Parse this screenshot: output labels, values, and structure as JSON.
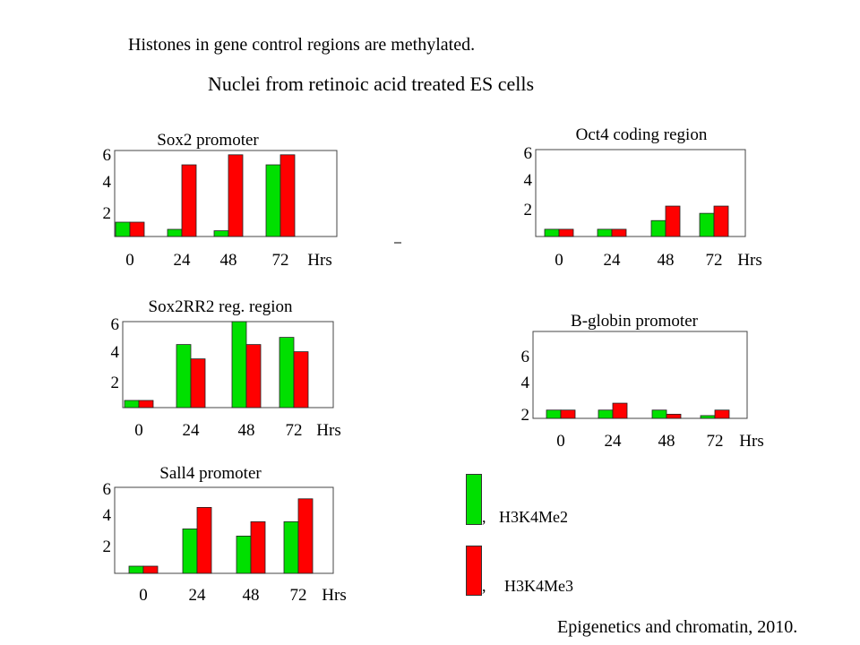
{
  "header": {
    "title": "Histones in gene control regions are methylated.",
    "subtitle": "Nuclei from retinoic acid treated ES cells"
  },
  "legend": {
    "items": [
      {
        "prefix": ",",
        "label": "H3K4Me2",
        "color": "#00e000"
      },
      {
        "prefix": ",",
        "label": "H3K4Me3",
        "color": "#ff0000"
      }
    ]
  },
  "citation": "Epigenetics and chromatin, 2010.",
  "chart_data": [
    {
      "type": "bar",
      "title": "Sox2 promoter",
      "categories": [
        "0",
        "24",
        "48",
        "72"
      ],
      "x_unit_label": "Hrs",
      "yticks": [
        "2",
        "4",
        "6"
      ],
      "ylim": [
        0,
        6
      ],
      "series": [
        {
          "name": "H3K4Me2",
          "values": [
            1.0,
            0.5,
            0.4,
            5.0
          ]
        },
        {
          "name": "H3K4Me3",
          "values": [
            1.0,
            5.0,
            5.7,
            5.7
          ]
        }
      ]
    },
    {
      "type": "bar",
      "title": "Oct4 coding region",
      "categories": [
        "0",
        "24",
        "48",
        "72"
      ],
      "x_unit_label": "Hrs",
      "yticks": [
        "2",
        "4",
        "6"
      ],
      "ylim": [
        0,
        6
      ],
      "series": [
        {
          "name": "H3K4Me2",
          "values": [
            0.5,
            0.5,
            1.1,
            1.6
          ]
        },
        {
          "name": "H3K4Me3",
          "values": [
            0.5,
            0.5,
            2.1,
            2.1
          ]
        }
      ]
    },
    {
      "type": "bar",
      "title": "Sox2RR2 reg. region",
      "categories": [
        "0",
        "24",
        "48",
        "72"
      ],
      "x_unit_label": "Hrs",
      "yticks": [
        "2",
        "4",
        "6"
      ],
      "ylim": [
        0,
        6
      ],
      "series": [
        {
          "name": "H3K4Me2",
          "values": [
            0.5,
            4.4,
            6.0,
            4.9
          ]
        },
        {
          "name": "H3K4Me3",
          "values": [
            0.5,
            3.4,
            4.4,
            3.9
          ]
        }
      ]
    },
    {
      "type": "bar",
      "title": "B-globin promoter",
      "categories": [
        "0",
        "24",
        "48",
        "72"
      ],
      "x_unit_label": "Hrs",
      "yticks": [
        "2",
        "4",
        "6"
      ],
      "ylim": [
        1.7,
        8
      ],
      "series": [
        {
          "name": "H3K4Me2",
          "values": [
            2.3,
            2.3,
            2.3,
            1.9
          ]
        },
        {
          "name": "H3K4Me3",
          "values": [
            2.3,
            2.8,
            2.0,
            2.3
          ]
        }
      ]
    },
    {
      "type": "bar",
      "title": "Sall4 promoter",
      "categories": [
        "0",
        "24",
        "48",
        "72"
      ],
      "x_unit_label": "Hrs",
      "yticks": [
        "2",
        "4",
        "6"
      ],
      "ylim": [
        0,
        6
      ],
      "series": [
        {
          "name": "H3K4Me2",
          "values": [
            0.5,
            3.1,
            2.6,
            3.6
          ]
        },
        {
          "name": "H3K4Me3",
          "values": [
            0.5,
            4.6,
            3.6,
            5.2
          ]
        }
      ]
    }
  ]
}
